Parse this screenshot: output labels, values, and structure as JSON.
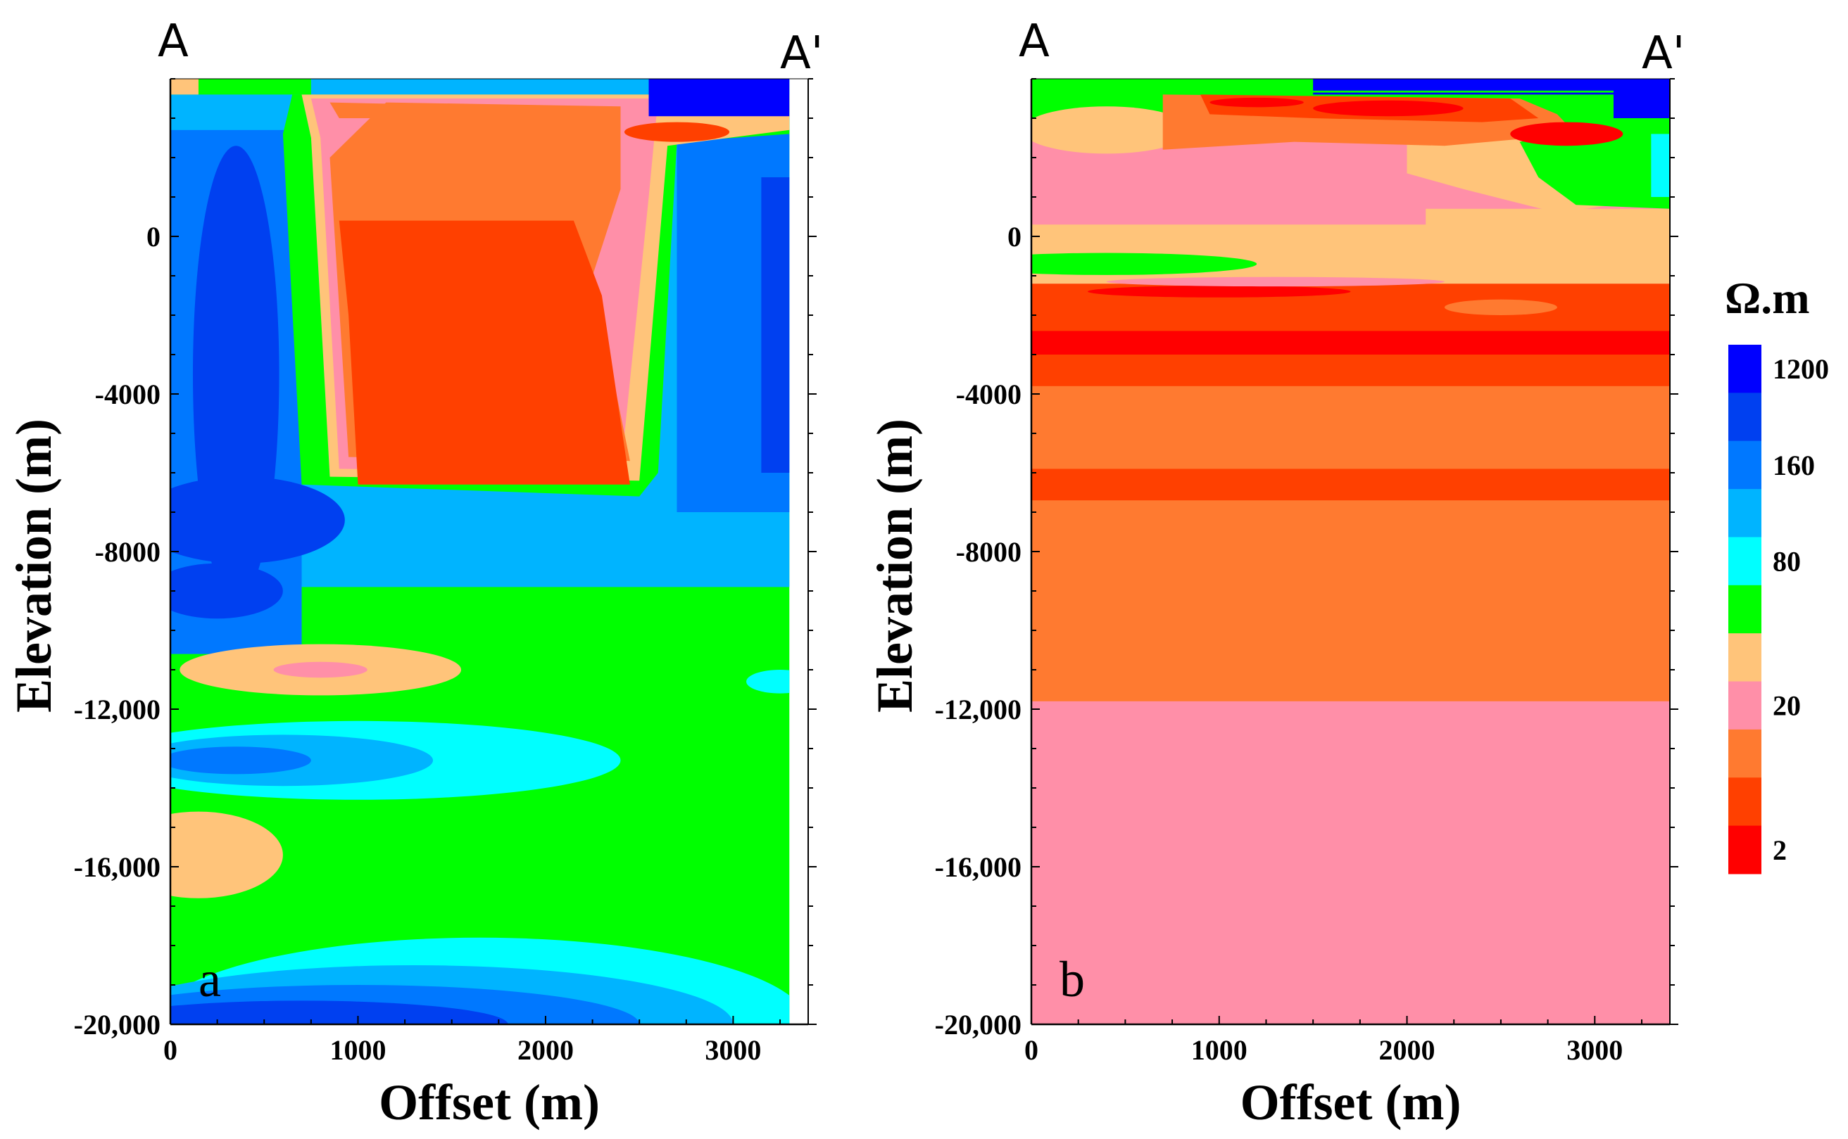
{
  "chart_data": [
    {
      "type": "heatmap",
      "panel": "a",
      "profile_start": "A",
      "profile_end": "A'",
      "xlabel": "Offset  (m)",
      "ylabel": "Elevation (m)",
      "xlim": [
        0,
        3400
      ],
      "ylim": [
        -20000,
        4000
      ],
      "xticks": [
        0,
        1000,
        2000,
        3000
      ],
      "xtick_labels": [
        "0",
        "1000",
        "2000",
        "3000"
      ],
      "yticks": [
        0,
        -4000,
        -8000,
        -12000,
        -16000,
        -20000
      ],
      "ytick_labels": [
        "0",
        "-4000",
        "-8000",
        "-12,000",
        "-16,000",
        "-20,000"
      ],
      "data_xmax": 3300,
      "data_ytop": 4000,
      "background_class": 7,
      "regions": [
        {
          "type": "rect",
          "x0": 0,
          "x1": 3300,
          "y0": 4000,
          "y1": -8900,
          "cls": 9
        },
        {
          "type": "rect",
          "x0": 2700,
          "x1": 3300,
          "y0": 3000,
          "y1": -7000,
          "cls": 10
        },
        {
          "type": "rect",
          "x0": 3150,
          "x1": 3300,
          "y0": 1500,
          "y1": -6000,
          "cls": 11
        },
        {
          "type": "rect",
          "x0": 0,
          "x1": 700,
          "y0": 2700,
          "y1": -10600,
          "cls": 10
        },
        {
          "type": "ellipse",
          "cx": 350,
          "cy": -3500,
          "rx": 230,
          "ry": 5800,
          "cls": 11
        },
        {
          "type": "ellipse",
          "cx": 380,
          "cy": -7200,
          "rx": 550,
          "ry": 1100,
          "cls": 11
        },
        {
          "type": "ellipse",
          "cx": 250,
          "cy": -9000,
          "rx": 350,
          "ry": 700,
          "cls": 11
        },
        {
          "type": "poly",
          "points": [
            [
              650,
              3600
            ],
            [
              3300,
              3600
            ],
            [
              3300,
              2600
            ],
            [
              2700,
              2400
            ],
            [
              2600,
              -6000
            ],
            [
              2500,
              -6600
            ],
            [
              700,
              -6300
            ],
            [
              600,
              2600
            ]
          ],
          "cls": 7
        },
        {
          "type": "poly",
          "points": [
            [
              700,
              3600
            ],
            [
              3300,
              3600
            ],
            [
              3300,
              2700
            ],
            [
              2650,
              2300
            ],
            [
              2500,
              -6200
            ],
            [
              850,
              -6100
            ],
            [
              750,
              2500
            ]
          ],
          "cls": 5
        },
        {
          "type": "poly",
          "points": [
            [
              750,
              3500
            ],
            [
              2600,
              3500
            ],
            [
              2550,
              1000
            ],
            [
              2400,
              -6000
            ],
            [
              900,
              -5900
            ],
            [
              800,
              2500
            ]
          ],
          "cls": 4
        },
        {
          "type": "poly",
          "points": [
            [
              1150,
              3400
            ],
            [
              2400,
              3300
            ],
            [
              2400,
              1200
            ],
            [
              2250,
              -1000
            ],
            [
              2450,
              -5700
            ],
            [
              950,
              -5600
            ],
            [
              850,
              2000
            ]
          ],
          "cls": 3
        },
        {
          "type": "poly",
          "points": [
            [
              900,
              400
            ],
            [
              2150,
              400
            ],
            [
              2300,
              -1500
            ],
            [
              2450,
              -6300
            ],
            [
              1000,
              -6300
            ],
            [
              950,
              -2000
            ]
          ],
          "cls": 2
        },
        {
          "type": "poly",
          "points": [
            [
              850,
              3400
            ],
            [
              1800,
              3300
            ],
            [
              1700,
              3000
            ],
            [
              900,
              3000
            ]
          ],
          "cls": 3
        },
        {
          "type": "ellipse",
          "cx": 2700,
          "cy": 2650,
          "rx": 280,
          "ry": 250,
          "cls": 2
        },
        {
          "type": "rect",
          "x0": 2550,
          "x1": 3300,
          "y0": 4000,
          "y1": 3050,
          "cls": 12
        },
        {
          "type": "rect",
          "x0": 0,
          "x1": 750,
          "y0": 4000,
          "y1": 3600,
          "cls": 7
        },
        {
          "type": "rect",
          "x0": 0,
          "x1": 150,
          "y0": 4000,
          "y1": 3600,
          "cls": 5
        },
        {
          "type": "ellipse",
          "cx": 800,
          "cy": -11000,
          "rx": 750,
          "ry": 650,
          "cls": 5
        },
        {
          "type": "ellipse",
          "cx": 800,
          "cy": -11000,
          "rx": 250,
          "ry": 200,
          "cls": 4
        },
        {
          "type": "ellipse",
          "cx": 1000,
          "cy": -13300,
          "rx": 1400,
          "ry": 1000,
          "cls": 8
        },
        {
          "type": "ellipse",
          "cx": 600,
          "cy": -13300,
          "rx": 800,
          "ry": 650,
          "cls": 9
        },
        {
          "type": "ellipse",
          "cx": 350,
          "cy": -13300,
          "rx": 400,
          "ry": 350,
          "cls": 10
        },
        {
          "type": "ellipse",
          "cx": 150,
          "cy": -15700,
          "rx": 450,
          "ry": 1100,
          "cls": 5
        },
        {
          "type": "ellipse",
          "cx": 1650,
          "cy": -20000,
          "rx": 1750,
          "ry": 2200,
          "cls": 8
        },
        {
          "type": "ellipse",
          "cx": 1300,
          "cy": -20000,
          "rx": 1700,
          "ry": 1500,
          "cls": 9
        },
        {
          "type": "ellipse",
          "cx": 1000,
          "cy": -20000,
          "rx": 1500,
          "ry": 1000,
          "cls": 10
        },
        {
          "type": "ellipse",
          "cx": 700,
          "cy": -20000,
          "rx": 1100,
          "ry": 600,
          "cls": 11
        },
        {
          "type": "ellipse",
          "cx": 3250,
          "cy": -11300,
          "rx": 180,
          "ry": 300,
          "cls": 8
        }
      ]
    },
    {
      "type": "heatmap",
      "panel": "b",
      "profile_start": "A",
      "profile_end": "A'",
      "xlabel": "Offset  (m)",
      "ylabel": "Elevation (m)",
      "xlim": [
        0,
        3400
      ],
      "ylim": [
        -20000,
        4000
      ],
      "xticks": [
        0,
        1000,
        2000,
        3000
      ],
      "xtick_labels": [
        "0",
        "1000",
        "2000",
        "3000"
      ],
      "yticks": [
        0,
        -4000,
        -8000,
        -12000,
        -16000,
        -20000
      ],
      "ytick_labels": [
        "0",
        "-4000",
        "-8000",
        "-12,000",
        "-16,000",
        "-20,000"
      ],
      "data_xmax": 3400,
      "data_ytop": 4000,
      "background_class": 4,
      "regions": [
        {
          "type": "rect",
          "x0": 0,
          "x1": 3400,
          "y0": -11800,
          "y1": -20000,
          "cls": 4
        },
        {
          "type": "rect",
          "x0": 0,
          "x1": 3400,
          "y0": -1200,
          "y1": -11800,
          "cls": 3
        },
        {
          "type": "rect",
          "x0": 0,
          "x1": 3400,
          "y0": -5900,
          "y1": -6700,
          "cls": 2
        },
        {
          "type": "rect",
          "x0": 0,
          "x1": 3400,
          "y0": -1200,
          "y1": -3800,
          "cls": 2
        },
        {
          "type": "rect",
          "x0": 0,
          "x1": 3400,
          "y0": -2400,
          "y1": -3000,
          "cls": 1
        },
        {
          "type": "ellipse",
          "cx": 1000,
          "cy": -1400,
          "rx": 700,
          "ry": 150,
          "cls": 1
        },
        {
          "type": "ellipse",
          "cx": 2500,
          "cy": -1800,
          "rx": 300,
          "ry": 200,
          "cls": 3
        },
        {
          "type": "rect",
          "x0": 0,
          "x1": 3400,
          "y0": 700,
          "y1": -1200,
          "cls": 5
        },
        {
          "type": "ellipse",
          "cx": 1300,
          "cy": -1150,
          "rx": 900,
          "ry": 120,
          "cls": 4
        },
        {
          "type": "ellipse",
          "cx": 400,
          "cy": -700,
          "rx": 800,
          "ry": 280,
          "cls": 7
        },
        {
          "type": "rect",
          "x0": 0,
          "x1": 2100,
          "y0": 2700,
          "y1": 300,
          "cls": 4
        },
        {
          "type": "poly",
          "points": [
            [
              2000,
              2500
            ],
            [
              3400,
              2800
            ],
            [
              3400,
              1000
            ],
            [
              2800,
              600
            ],
            [
              2300,
              1200
            ],
            [
              2000,
              1600
            ]
          ],
          "cls": 5
        },
        {
          "type": "poly",
          "points": [
            [
              2600,
              2400
            ],
            [
              3400,
              3000
            ],
            [
              3400,
              700
            ],
            [
              2900,
              800
            ],
            [
              2700,
              1500
            ]
          ],
          "cls": 7
        },
        {
          "type": "rect",
          "x0": 3300,
          "x1": 3400,
          "y0": 4000,
          "y1": 1000,
          "cls": 8
        },
        {
          "type": "rect",
          "x0": 0,
          "x1": 3400,
          "y0": 4000,
          "y1": 2600,
          "cls": 7
        },
        {
          "type": "ellipse",
          "cx": 400,
          "cy": 2700,
          "rx": 450,
          "ry": 600,
          "cls": 5
        },
        {
          "type": "poly",
          "points": [
            [
              700,
              3600
            ],
            [
              2600,
              3500
            ],
            [
              2800,
              3100
            ],
            [
              2900,
              2600
            ],
            [
              2200,
              2300
            ],
            [
              1400,
              2400
            ],
            [
              700,
              2200
            ]
          ],
          "cls": 3
        },
        {
          "type": "poly",
          "points": [
            [
              900,
              3600
            ],
            [
              2550,
              3500
            ],
            [
              2700,
              3000
            ],
            [
              2400,
              2900
            ],
            [
              1500,
              3000
            ],
            [
              950,
              3100
            ]
          ],
          "cls": 2
        },
        {
          "type": "ellipse",
          "cx": 1200,
          "cy": 3400,
          "rx": 250,
          "ry": 120,
          "cls": 1
        },
        {
          "type": "ellipse",
          "cx": 1900,
          "cy": 3250,
          "rx": 400,
          "ry": 200,
          "cls": 1
        },
        {
          "type": "ellipse",
          "cx": 2850,
          "cy": 2600,
          "rx": 300,
          "ry": 300,
          "cls": 1
        },
        {
          "type": "rect",
          "x0": 1500,
          "x1": 3400,
          "y0": 4000,
          "y1": 3600,
          "cls": 12
        },
        {
          "type": "rect",
          "x0": 0,
          "x1": 3400,
          "y0": 4000,
          "y1": 3650,
          "cls": 7
        },
        {
          "type": "rect",
          "x0": 1500,
          "x1": 3400,
          "y0": 4000,
          "y1": 3700,
          "cls": 12
        },
        {
          "type": "rect",
          "x0": 3100,
          "x1": 3400,
          "y0": 4000,
          "y1": 3000,
          "cls": 12
        }
      ]
    }
  ],
  "colorbar": {
    "unit": "Ω.m",
    "labels": [
      {
        "text": "1200",
        "class": 12
      },
      {
        "text": "160",
        "class": 10
      },
      {
        "text": "80",
        "class": 8
      },
      {
        "text": "20",
        "class": 4
      },
      {
        "text": "2",
        "class": 1
      }
    ],
    "colors": {
      "1": "#ff0000",
      "2": "#ff4000",
      "3": "#ff7a30",
      "4": "#ff8fa8",
      "5": "#ffc47a",
      "7": "#00ff00",
      "8": "#00ffff",
      "9": "#00b4ff",
      "10": "#0078ff",
      "11": "#0040f0",
      "12": "#0000ff"
    },
    "class_order_top_to_bottom": [
      12,
      11,
      10,
      9,
      8,
      7,
      5,
      4,
      3,
      2,
      1
    ]
  }
}
